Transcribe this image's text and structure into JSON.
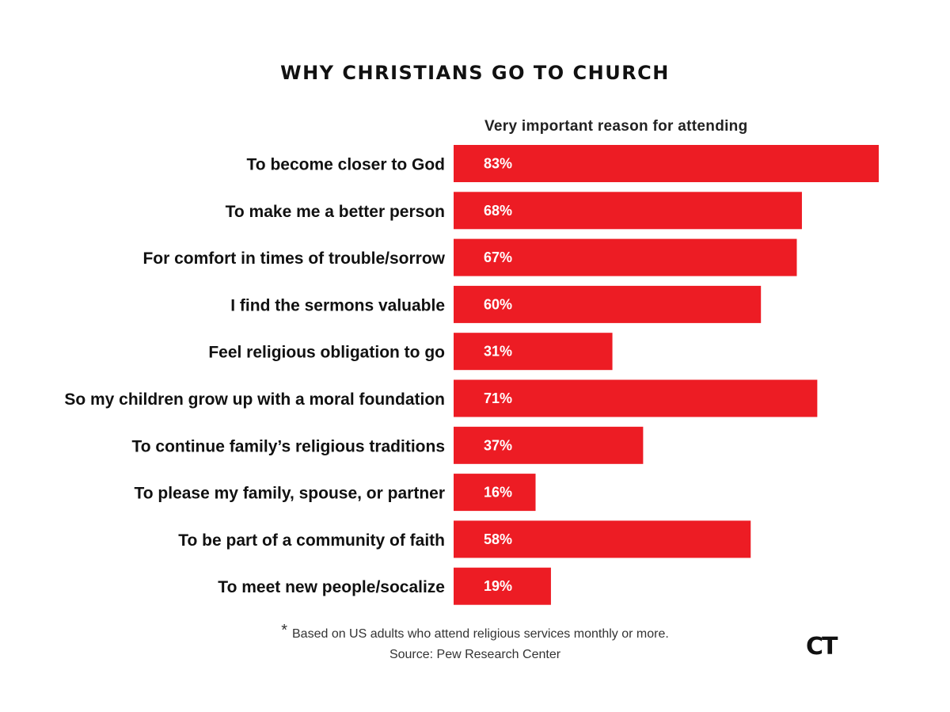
{
  "chart_data": {
    "type": "bar",
    "orientation": "horizontal",
    "title": "WHY CHRISTIANS GO TO CHURCH",
    "subtitle": "Very important reason for attending",
    "categories": [
      "To become closer to God",
      "To make me a better person",
      "For comfort in times of trouble/sorrow",
      "I find the sermons valuable",
      "Feel religious obligation to go",
      "So my children grow up with a moral foundation",
      "To continue family’s religious traditions",
      "To please my family, spouse, or partner",
      "To be part of a community of faith",
      "To meet new people/socalize"
    ],
    "values": [
      83,
      68,
      67,
      60,
      31,
      71,
      37,
      16,
      58,
      19
    ],
    "value_labels": [
      "83%",
      "68%",
      "67%",
      "60%",
      "31%",
      "71%",
      "37%",
      "16%",
      "58%",
      "19%"
    ],
    "unit": "%",
    "bar_color": "#ed1c24",
    "grid": false
  },
  "footnote": {
    "marker": "*",
    "text": "Based on US adults who attend religious services monthly or more."
  },
  "source": "Source: Pew Research Center",
  "logo_text": "CT"
}
